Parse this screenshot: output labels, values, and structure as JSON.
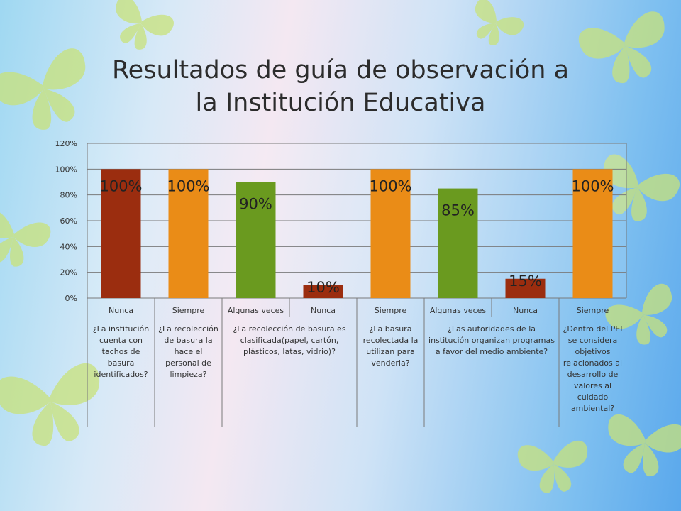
{
  "slide": {
    "title_line1": "Resultados de guía de observación a",
    "title_line2": "la Institución Educativa"
  },
  "chart_data": {
    "type": "bar",
    "ylim": [
      0,
      1.2
    ],
    "y_ticks": [
      "0%",
      "20%",
      "40%",
      "60%",
      "80%",
      "100%",
      "120%"
    ],
    "grid": true,
    "legend": "none",
    "categories": [
      "Nunca",
      "Siempre",
      "Algunas veces",
      "Nunca",
      "Siempre",
      "Algunas veces",
      "Nunca",
      "Siempre"
    ],
    "values": [
      1.0,
      1.0,
      0.9,
      0.1,
      1.0,
      0.85,
      0.15,
      1.0
    ],
    "data_labels": [
      "100%",
      "100%",
      "90%",
      "10%",
      "100%",
      "85%",
      "15%",
      "100%"
    ],
    "colors": [
      "#9b2d0f",
      "#ea8c17",
      "#6a9a1f",
      "#9b2d0f",
      "#ea8c17",
      "#6a9a1f",
      "#9b2d0f",
      "#ea8c17"
    ],
    "groups": [
      {
        "question": "¿La institución cuenta con tachos de basura identificados?",
        "span": [
          0,
          0
        ]
      },
      {
        "question": "¿La recolección de basura la hace el personal de limpieza?",
        "span": [
          1,
          1
        ]
      },
      {
        "question": "¿La recolección de basura es clasificada(papel, cartón, plásticos, latas, vidrio)?",
        "span": [
          2,
          3
        ]
      },
      {
        "question": "¿La basura recolectada la utilizan para venderla?",
        "span": [
          4,
          4
        ]
      },
      {
        "question": "¿Las autoridades de la institución organizan programas a favor del medio ambiente?",
        "span": [
          5,
          6
        ]
      },
      {
        "question": "¿Dentro del PEI se considera objetivos relacionados al desarrollo de valores al cuidado ambiental?",
        "span": [
          7,
          7
        ]
      }
    ]
  }
}
